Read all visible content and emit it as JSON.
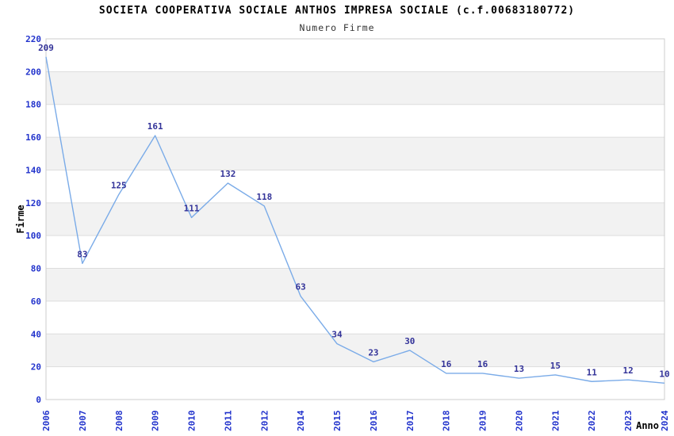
{
  "chart_data": {
    "type": "line",
    "title": "SOCIETA COOPERATIVA SOCIALE ANTHOS IMPRESA SOCIALE (c.f.00683180772)",
    "subtitle": "Numero Firme",
    "xlabel": "Anno",
    "ylabel": "Firme",
    "categories": [
      "2006",
      "2007",
      "2008",
      "2009",
      "2010",
      "2011",
      "2012",
      "2014",
      "2015",
      "2016",
      "2017",
      "2018",
      "2019",
      "2020",
      "2021",
      "2022",
      "2023",
      "2024"
    ],
    "values": [
      209,
      83,
      125,
      161,
      111,
      132,
      118,
      63,
      34,
      23,
      30,
      16,
      16,
      13,
      15,
      11,
      12,
      10
    ],
    "ylim": [
      0,
      220
    ],
    "ytick_step": 20,
    "grid": "horizontal, alternating shaded bands",
    "legend": "none",
    "colors": {
      "line": "#7aabe8",
      "value_label": "#333399",
      "tick_label": "#2233cc",
      "band": "#f2f2f2",
      "gridline": "#dddddd",
      "plot_border": "#cccccc",
      "axis_label": "#000000",
      "title": "#000000",
      "subtitle": "#333333"
    }
  }
}
